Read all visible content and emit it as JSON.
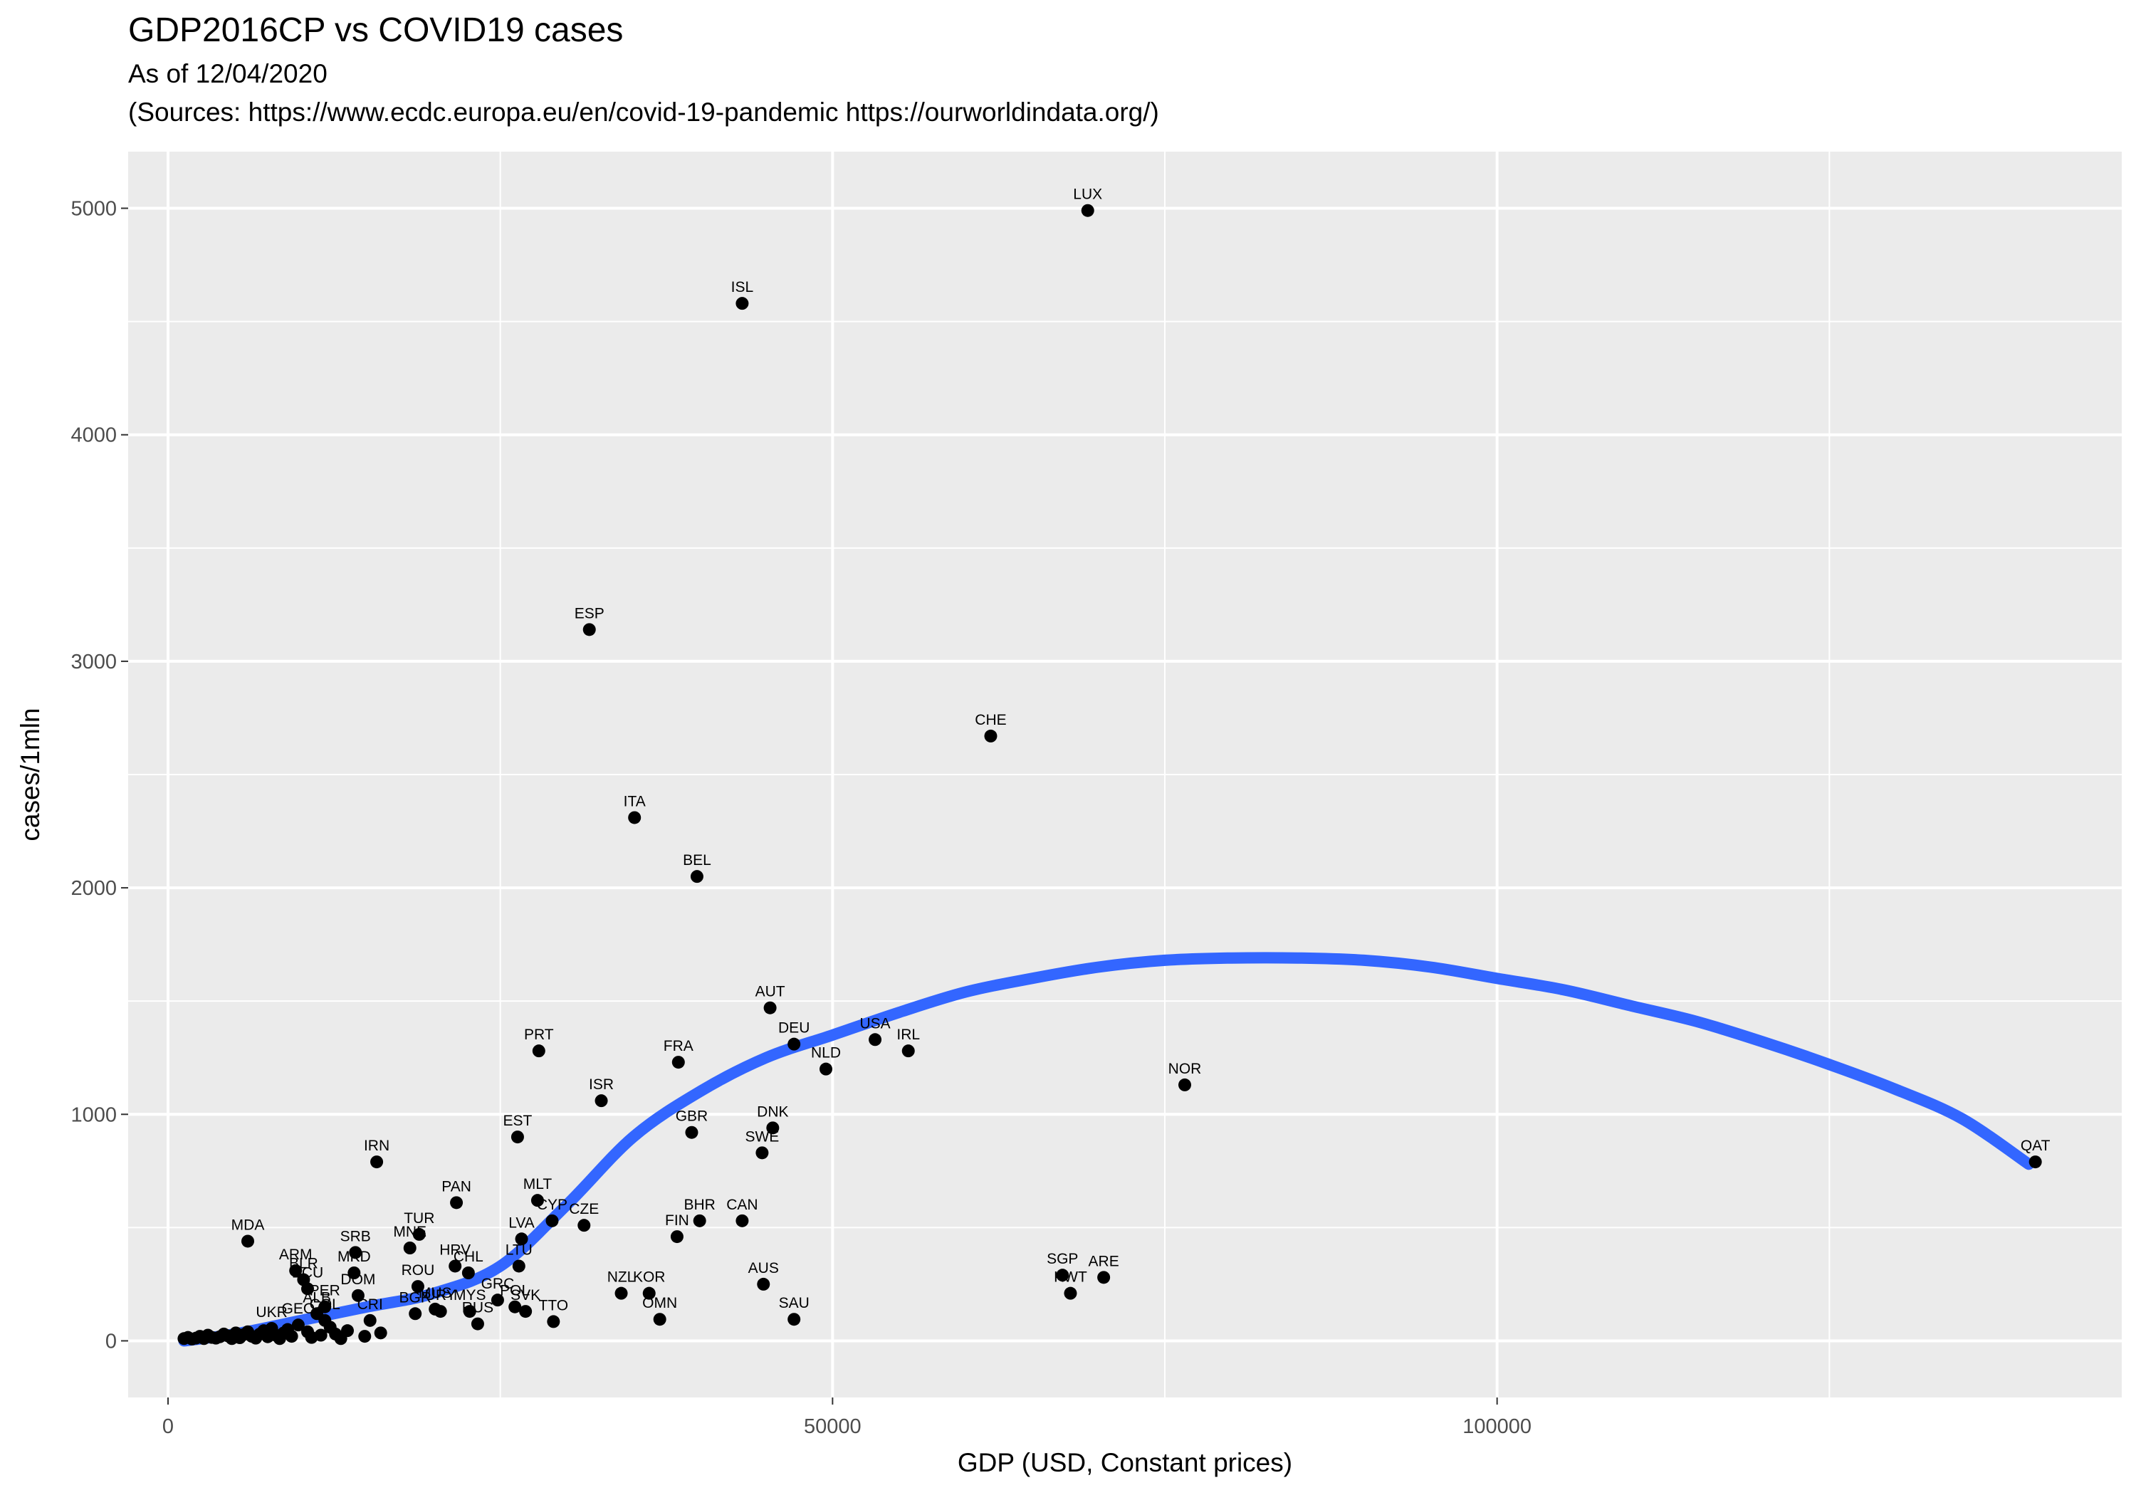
{
  "chart_data": {
    "type": "scatter",
    "title": "GDP2016CP vs COVID19 cases",
    "subtitle_line1": "As of 12/04/2020",
    "subtitle_line2": "(Sources: https://www.ecdc.europa.eu/en/covid-19-pandemic https://ourworldindata.org/)",
    "xlabel": "GDP (USD, Constant prices)",
    "ylabel": "cases/1mln",
    "xlim": [
      -3000,
      147000
    ],
    "ylim": [
      -250,
      5250
    ],
    "x_ticks": [
      0,
      50000,
      100000
    ],
    "x_tick_labels": [
      "0",
      "50000",
      "100000"
    ],
    "x_minor_ticks": [
      25000,
      75000,
      125000
    ],
    "y_ticks": [
      0,
      1000,
      2000,
      3000,
      4000,
      5000
    ],
    "y_tick_labels": [
      "0",
      "1000",
      "2000",
      "3000",
      "4000",
      "5000"
    ],
    "y_minor_ticks": [
      500,
      1500,
      2500,
      3500,
      4500
    ],
    "grid": true,
    "legend": "none",
    "colors": {
      "panel": "#ebebeb",
      "grid": "#ffffff",
      "point": "#000000",
      "smooth": "#3366ff"
    },
    "labeled_points": [
      {
        "label": "LUX",
        "x": 69200,
        "y": 4990
      },
      {
        "label": "ISL",
        "x": 43200,
        "y": 4580
      },
      {
        "label": "ESP",
        "x": 31700,
        "y": 3140
      },
      {
        "label": "CHE",
        "x": 61900,
        "y": 2670
      },
      {
        "label": "ITA",
        "x": 35100,
        "y": 2310
      },
      {
        "label": "BEL",
        "x": 39800,
        "y": 2050
      },
      {
        "label": "AUT",
        "x": 45300,
        "y": 1470
      },
      {
        "label": "DEU",
        "x": 47100,
        "y": 1310
      },
      {
        "label": "USA",
        "x": 53200,
        "y": 1330
      },
      {
        "label": "IRL",
        "x": 55700,
        "y": 1280
      },
      {
        "label": "NLD",
        "x": 49500,
        "y": 1200
      },
      {
        "label": "PRT",
        "x": 27900,
        "y": 1280
      },
      {
        "label": "FRA",
        "x": 38400,
        "y": 1230
      },
      {
        "label": "NOR",
        "x": 76500,
        "y": 1130
      },
      {
        "label": "ISR",
        "x": 32600,
        "y": 1060
      },
      {
        "label": "DNK",
        "x": 45500,
        "y": 940
      },
      {
        "label": "GBR",
        "x": 39400,
        "y": 920
      },
      {
        "label": "EST",
        "x": 26300,
        "y": 900
      },
      {
        "label": "SWE",
        "x": 44700,
        "y": 830
      },
      {
        "label": "IRN",
        "x": 15700,
        "y": 790
      },
      {
        "label": "QAT",
        "x": 140500,
        "y": 790
      },
      {
        "label": "MLT",
        "x": 27800,
        "y": 620
      },
      {
        "label": "PAN",
        "x": 21700,
        "y": 610
      },
      {
        "label": "BHR",
        "x": 40000,
        "y": 530
      },
      {
        "label": "CAN",
        "x": 43200,
        "y": 530
      },
      {
        "label": "CZE",
        "x": 31300,
        "y": 510
      },
      {
        "label": "CYP",
        "x": 28900,
        "y": 530
      },
      {
        "label": "FIN",
        "x": 38300,
        "y": 460
      },
      {
        "label": "TUR",
        "x": 18900,
        "y": 470
      },
      {
        "label": "LVA",
        "x": 26600,
        "y": 450
      },
      {
        "label": "MNE",
        "x": 18200,
        "y": 410
      },
      {
        "label": "SRB",
        "x": 14100,
        "y": 390
      },
      {
        "label": "MDA",
        "x": 6000,
        "y": 440
      },
      {
        "label": "HRV",
        "x": 21600,
        "y": 330
      },
      {
        "label": "CHL",
        "x": 22600,
        "y": 300
      },
      {
        "label": "LTU",
        "x": 26400,
        "y": 330
      },
      {
        "label": "ARM",
        "x": 9600,
        "y": 310
      },
      {
        "label": "BLR",
        "x": 10200,
        "y": 270
      },
      {
        "label": "ECU",
        "x": 10500,
        "y": 230
      },
      {
        "label": "MKD",
        "x": 14000,
        "y": 300
      },
      {
        "label": "ROU",
        "x": 18800,
        "y": 240
      },
      {
        "label": "MUS",
        "x": 20100,
        "y": 140
      },
      {
        "label": "DOM",
        "x": 14300,
        "y": 200
      },
      {
        "label": "GRC",
        "x": 24800,
        "y": 180
      },
      {
        "label": "SAU",
        "x": 47100,
        "y": 95
      },
      {
        "label": "NZL",
        "x": 34100,
        "y": 210
      },
      {
        "label": "KOR",
        "x": 36200,
        "y": 210
      },
      {
        "label": "AUS",
        "x": 44800,
        "y": 250
      },
      {
        "label": "OMN",
        "x": 37000,
        "y": 95
      },
      {
        "label": "SGP",
        "x": 67300,
        "y": 290
      },
      {
        "label": "KWT",
        "x": 67900,
        "y": 210
      },
      {
        "label": "ARE",
        "x": 70400,
        "y": 280
      },
      {
        "label": "TTO",
        "x": 29000,
        "y": 85
      },
      {
        "label": "SVK",
        "x": 26900,
        "y": 130
      },
      {
        "label": "POL",
        "x": 26100,
        "y": 150
      },
      {
        "label": "MYS",
        "x": 22700,
        "y": 130
      },
      {
        "label": "RUS",
        "x": 23300,
        "y": 75
      },
      {
        "label": "URY",
        "x": 20500,
        "y": 130
      },
      {
        "label": "BGR",
        "x": 18600,
        "y": 120
      },
      {
        "label": "CRI",
        "x": 15200,
        "y": 90
      },
      {
        "label": "PER",
        "x": 11800,
        "y": 150
      },
      {
        "label": "COL",
        "x": 11800,
        "y": 90
      },
      {
        "label": "ALB",
        "x": 11200,
        "y": 120
      },
      {
        "label": "GEO",
        "x": 9800,
        "y": 70
      },
      {
        "label": "UKR",
        "x": 7800,
        "y": 55
      }
    ],
    "unlabeled_points": [
      {
        "x": 1200,
        "y": 10
      },
      {
        "x": 1500,
        "y": 15
      },
      {
        "x": 1800,
        "y": 8
      },
      {
        "x": 2100,
        "y": 12
      },
      {
        "x": 2400,
        "y": 20
      },
      {
        "x": 2700,
        "y": 10
      },
      {
        "x": 3000,
        "y": 25
      },
      {
        "x": 3300,
        "y": 15
      },
      {
        "x": 3600,
        "y": 12
      },
      {
        "x": 3900,
        "y": 18
      },
      {
        "x": 4200,
        "y": 30
      },
      {
        "x": 4500,
        "y": 22
      },
      {
        "x": 4800,
        "y": 10
      },
      {
        "x": 5100,
        "y": 35
      },
      {
        "x": 5400,
        "y": 14
      },
      {
        "x": 5700,
        "y": 28
      },
      {
        "x": 6000,
        "y": 40
      },
      {
        "x": 6300,
        "y": 20
      },
      {
        "x": 6600,
        "y": 12
      },
      {
        "x": 6900,
        "y": 30
      },
      {
        "x": 7200,
        "y": 45
      },
      {
        "x": 7500,
        "y": 18
      },
      {
        "x": 8100,
        "y": 25
      },
      {
        "x": 8400,
        "y": 10
      },
      {
        "x": 8700,
        "y": 35
      },
      {
        "x": 9000,
        "y": 50
      },
      {
        "x": 9300,
        "y": 20
      },
      {
        "x": 10500,
        "y": 40
      },
      {
        "x": 10800,
        "y": 15
      },
      {
        "x": 11500,
        "y": 25
      },
      {
        "x": 12200,
        "y": 60
      },
      {
        "x": 12600,
        "y": 30
      },
      {
        "x": 13000,
        "y": 10
      },
      {
        "x": 13500,
        "y": 45
      },
      {
        "x": 14800,
        "y": 20
      },
      {
        "x": 16000,
        "y": 35
      }
    ],
    "smooth_curve": {
      "x": [
        1200,
        5000,
        10000,
        15000,
        20000,
        25000,
        30000,
        35000,
        40000,
        45000,
        50000,
        55000,
        60000,
        65000,
        70000,
        75000,
        80000,
        85000,
        90000,
        95000,
        100000,
        105000,
        110000,
        115000,
        120000,
        125000,
        130000,
        135000,
        140000
      ],
      "y": [
        0,
        30,
        90,
        150,
        210,
        330,
        600,
        900,
        1100,
        1250,
        1350,
        1450,
        1540,
        1600,
        1650,
        1680,
        1690,
        1690,
        1680,
        1650,
        1600,
        1550,
        1480,
        1410,
        1320,
        1220,
        1110,
        980,
        780
      ]
    }
  }
}
